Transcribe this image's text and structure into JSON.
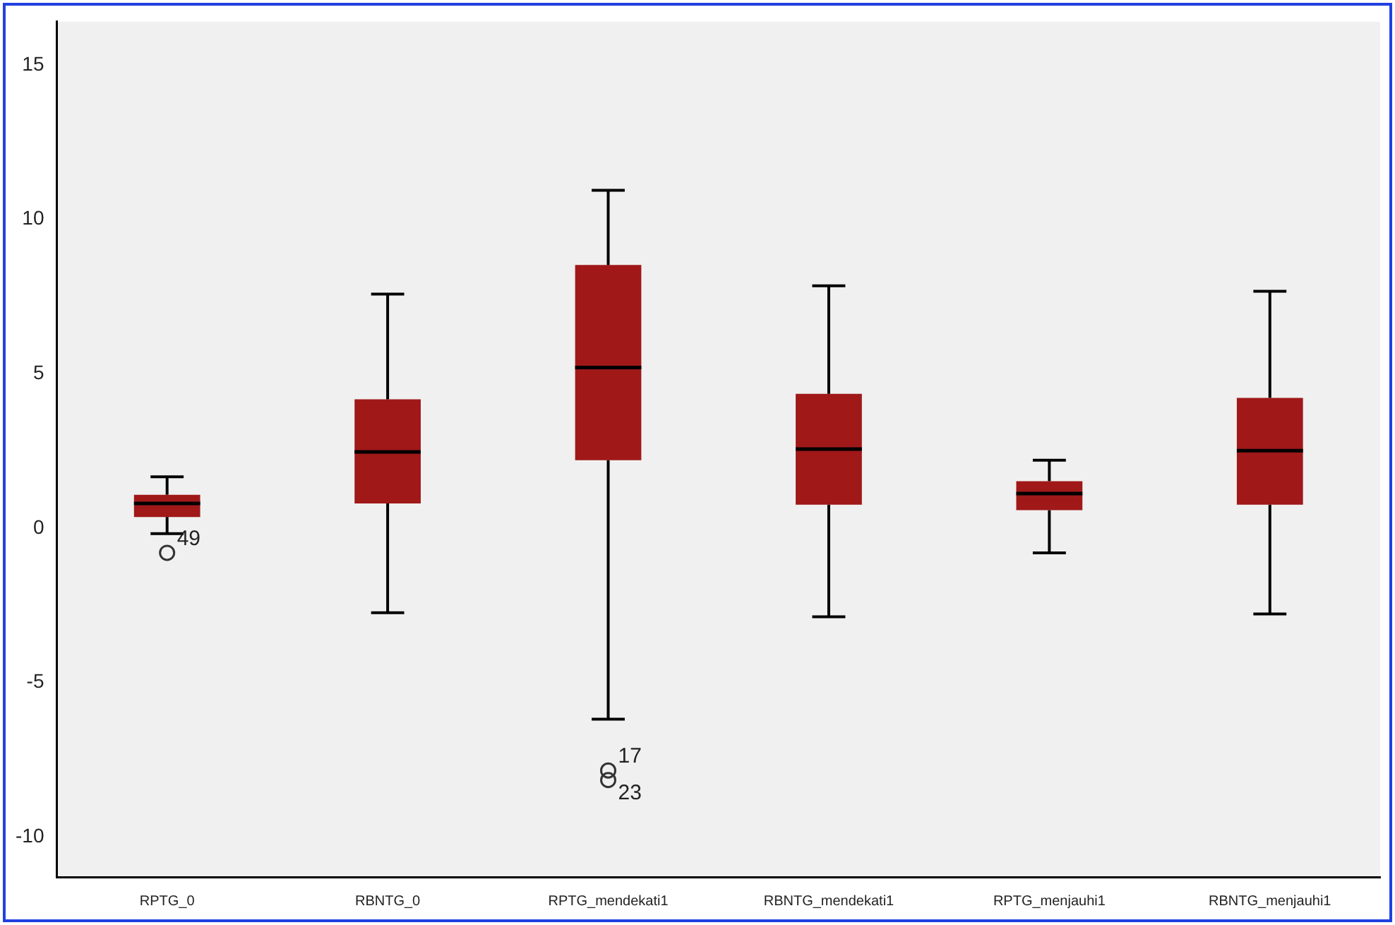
{
  "chart_data": {
    "type": "box",
    "categories": [
      "RPTG_0",
      "RBNTG_0",
      "RPTG_mendekati1",
      "RBNTG_mendekati1",
      "RPTG_menjauhi1",
      "RBNTG_menjauhi1"
    ],
    "color": "#a01818",
    "boxes": [
      {
        "low": -0.18,
        "q1": 0.36,
        "median": 0.8,
        "q3": 1.08,
        "high": 1.66,
        "outliers": [
          -0.8
        ]
      },
      {
        "low": -2.74,
        "q1": 0.8,
        "median": 2.47,
        "q3": 4.17,
        "high": 7.58
      },
      {
        "low": -6.19,
        "q1": 2.2,
        "median": 5.2,
        "q3": 8.52,
        "high": 10.94,
        "outliers": [
          -7.85,
          -8.16
        ]
      },
      {
        "low": -2.87,
        "q1": 0.76,
        "median": 2.56,
        "q3": 4.35,
        "high": 7.85
      },
      {
        "low": -0.8,
        "q1": 0.58,
        "median": 1.12,
        "q3": 1.52,
        "high": 2.2
      },
      {
        "low": -2.78,
        "q1": 0.76,
        "median": 2.51,
        "q3": 4.22,
        "high": 7.67
      }
    ],
    "ylim": [
      -11.3,
      16.4
    ],
    "yticks": [
      -10,
      -5,
      0,
      5,
      10,
      15
    ],
    "grid": false,
    "legend": false,
    "annotations": [
      "49",
      "17",
      "23"
    ]
  }
}
